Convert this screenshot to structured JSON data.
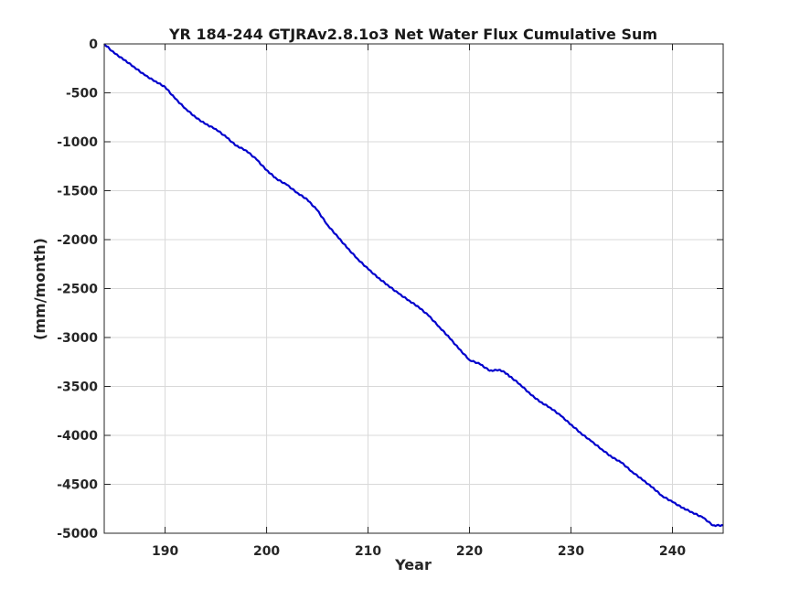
{
  "chart_data": {
    "type": "line",
    "title": "YR 184-244 GTJRAv2.8.1o3 Net Water Flux Cumulative Sum",
    "xlabel": "Year",
    "ylabel": "(mm/month)",
    "xlim": [
      184,
      245
    ],
    "ylim": [
      -5000,
      0
    ],
    "xticks": [
      190,
      200,
      210,
      220,
      230,
      240
    ],
    "yticks": [
      0,
      -500,
      -1000,
      -1500,
      -2000,
      -2500,
      -3000,
      -3500,
      -4000,
      -4500,
      -5000
    ],
    "grid": true,
    "line_color": "#0000cc",
    "series": [
      {
        "x": [
          184.0,
          185.0,
          186.0,
          187.0,
          188.0,
          189.0,
          190.0,
          191.0,
          192.0,
          193.0,
          194.0,
          195.0,
          196.0,
          197.0,
          198.0,
          199.0,
          200.0,
          201.0,
          202.0,
          203.0,
          204.0,
          205.0,
          206.0,
          207.0,
          208.0,
          209.0,
          210.0,
          211.0,
          212.0,
          213.0,
          214.0,
          215.0,
          216.0,
          217.0,
          218.0,
          219.0,
          220.0,
          221.0,
          222.0,
          223.0,
          223.5,
          224.0,
          225.0,
          226.0,
          227.0,
          228.0,
          229.0,
          230.0,
          231.0,
          232.0,
          233.0,
          234.0,
          235.0,
          236.0,
          237.0,
          238.0,
          239.0,
          240.0,
          241.0,
          242.0,
          243.0,
          244.0,
          245.0
        ],
        "y": [
          0,
          -95,
          -165,
          -240,
          -320,
          -380,
          -440,
          -560,
          -660,
          -750,
          -820,
          -870,
          -950,
          -1040,
          -1090,
          -1180,
          -1290,
          -1380,
          -1440,
          -1520,
          -1590,
          -1700,
          -1850,
          -1970,
          -2090,
          -2200,
          -2300,
          -2390,
          -2470,
          -2550,
          -2620,
          -2690,
          -2780,
          -2890,
          -3000,
          -3120,
          -3230,
          -3270,
          -3340,
          -3330,
          -3360,
          -3400,
          -3480,
          -3580,
          -3660,
          -3720,
          -3800,
          -3890,
          -3980,
          -4060,
          -4140,
          -4220,
          -4280,
          -4370,
          -4450,
          -4530,
          -4620,
          -4680,
          -4740,
          -4790,
          -4840,
          -4920,
          -4920
        ]
      }
    ]
  }
}
